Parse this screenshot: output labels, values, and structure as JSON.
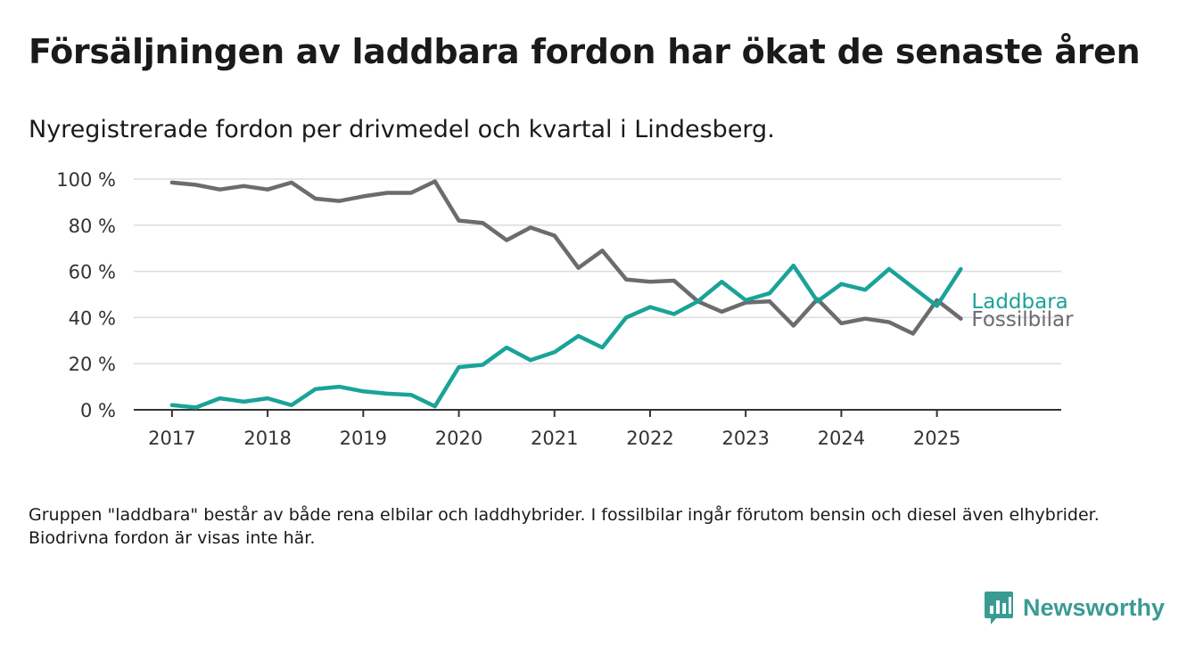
{
  "header": {
    "title": "Försäljningen av laddbara fordon har ökat de senaste åren",
    "subtitle": "Nyregistrerade fordon per drivmedel och kvartal i Lindesberg."
  },
  "footer": {
    "note": "Gruppen \"laddbara\" består av både rena elbilar och laddhybrider. I fossilbilar ingår förutom bensin och diesel även elhybrider. Biodrivna fordon är visas inte här.",
    "brand": "Newsworthy",
    "brand_icon": "bar-chart-speech-bubble-icon",
    "brand_color": "#3a9b93"
  },
  "chart_data": {
    "type": "line",
    "x_ticks": [
      "2017",
      "2018",
      "2019",
      "2020",
      "2021",
      "2022",
      "2023",
      "2024",
      "2025"
    ],
    "y_ticks": [
      "0 %",
      "20 %",
      "40 %",
      "60 %",
      "80 %",
      "100 %"
    ],
    "y_ticks_values": [
      0,
      20,
      40,
      60,
      80,
      100
    ],
    "ylim": [
      0,
      100
    ],
    "xlim": [
      2016.6,
      2026.3
    ],
    "grid": true,
    "legend_placement": "line-end-labels",
    "x": [
      2017.0,
      2017.25,
      2017.5,
      2017.75,
      2018.0,
      2018.25,
      2018.5,
      2018.75,
      2019.0,
      2019.25,
      2019.5,
      2019.75,
      2020.0,
      2020.25,
      2020.5,
      2020.75,
      2021.0,
      2021.25,
      2021.5,
      2021.75,
      2022.0,
      2022.25,
      2022.5,
      2022.75,
      2023.0,
      2023.25,
      2023.5,
      2023.75,
      2024.0,
      2024.25,
      2024.5,
      2024.75,
      2025.0,
      2025.25
    ],
    "series": [
      {
        "name": "Laddbara",
        "color": "#1aa398",
        "values": [
          2,
          1,
          5,
          3.5,
          5,
          2,
          9,
          10,
          8,
          7,
          6.5,
          1.5,
          18.5,
          19.5,
          27,
          21.5,
          25,
          32,
          27,
          40,
          44.5,
          41.5,
          47,
          55.5,
          47.5,
          50.5,
          62.5,
          47,
          54.5,
          52,
          61,
          53,
          45,
          61
        ]
      },
      {
        "name": "Fossilbilar",
        "color": "#6b6b70",
        "values": [
          98.5,
          97.5,
          95.5,
          97,
          95.5,
          98.5,
          91.5,
          90.5,
          92.5,
          94,
          94,
          99,
          82,
          81,
          73.5,
          79,
          75.5,
          61.5,
          69,
          56.5,
          55.5,
          56,
          47,
          42.5,
          46.5,
          47,
          36.5,
          48,
          37.5,
          39.5,
          38,
          33,
          47.5,
          39.5
        ]
      }
    ]
  }
}
